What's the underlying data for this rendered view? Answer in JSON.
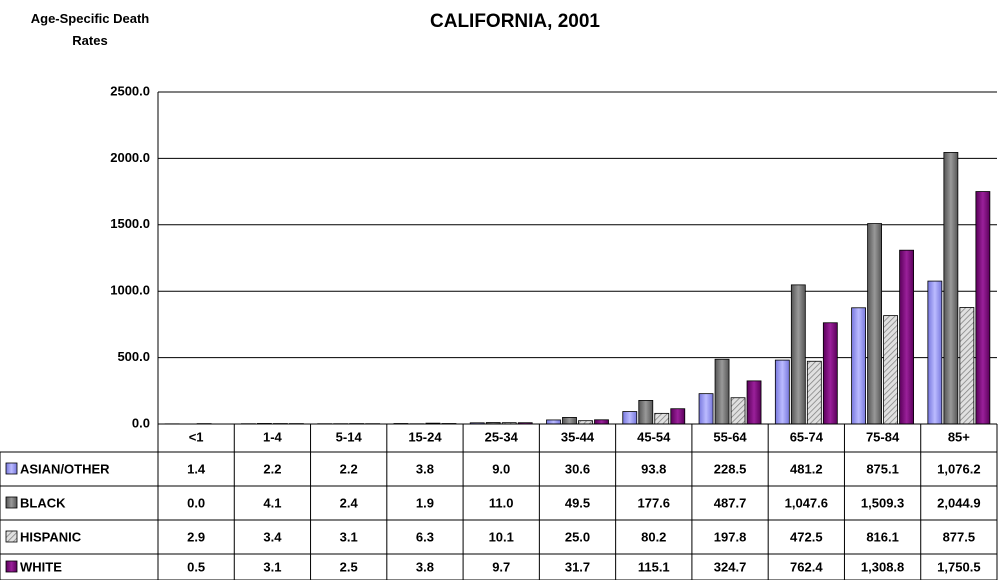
{
  "chart_data": {
    "type": "bar",
    "title": "CALIFORNIA, 2001",
    "y_axis_label": "Age-Specific Death Rates",
    "categories": [
      "<1",
      "1-4",
      "5-14",
      "15-24",
      "25-34",
      "35-44",
      "45-54",
      "55-64",
      "65-74",
      "75-84",
      "85+"
    ],
    "series": [
      {
        "name": "ASIAN/OTHER",
        "color": "#9999ff",
        "values": [
          1.4,
          2.2,
          2.2,
          3.8,
          9.0,
          30.6,
          93.8,
          228.5,
          481.2,
          875.1,
          1076.2
        ],
        "value_labels": [
          "1.4",
          "2.2",
          "2.2",
          "3.8",
          "9.0",
          "30.6",
          "93.8",
          "228.5",
          "481.2",
          "875.1",
          "1,076.2"
        ]
      },
      {
        "name": "BLACK",
        "color": "#808080",
        "values": [
          0.0,
          4.1,
          2.4,
          1.9,
          11.0,
          49.5,
          177.6,
          487.7,
          1047.6,
          1509.3,
          2044.9
        ],
        "value_labels": [
          "0.0",
          "4.1",
          "2.4",
          "1.9",
          "11.0",
          "49.5",
          "177.6",
          "487.7",
          "1,047.6",
          "1,509.3",
          "2,044.9"
        ]
      },
      {
        "name": "HISPANIC",
        "color": "#c0c0c0",
        "values": [
          2.9,
          3.4,
          3.1,
          6.3,
          10.1,
          25.0,
          80.2,
          197.8,
          472.5,
          816.1,
          877.5
        ],
        "value_labels": [
          "2.9",
          "3.4",
          "3.1",
          "6.3",
          "10.1",
          "25.0",
          "80.2",
          "197.8",
          "472.5",
          "816.1",
          "877.5"
        ]
      },
      {
        "name": "WHITE",
        "color": "#800080",
        "values": [
          0.5,
          3.1,
          2.5,
          3.8,
          9.7,
          31.7,
          115.1,
          324.7,
          762.4,
          1308.8,
          1750.5
        ],
        "value_labels": [
          "0.5",
          "3.1",
          "2.5",
          "3.8",
          "9.7",
          "31.7",
          "115.1",
          "324.7",
          "762.4",
          "1,308.8",
          "1,750.5"
        ]
      }
    ],
    "ylim": [
      0,
      2500
    ],
    "yticks": [
      {
        "value": 0,
        "label": "0.0"
      },
      {
        "value": 500,
        "label": "500.0"
      },
      {
        "value": 1000,
        "label": "1000.0"
      },
      {
        "value": 1500,
        "label": "1500.0"
      },
      {
        "value": 2000,
        "label": "2000.0"
      },
      {
        "value": 2500,
        "label": "2500.0"
      }
    ],
    "grid": true,
    "hatched_series": "HISPANIC"
  }
}
